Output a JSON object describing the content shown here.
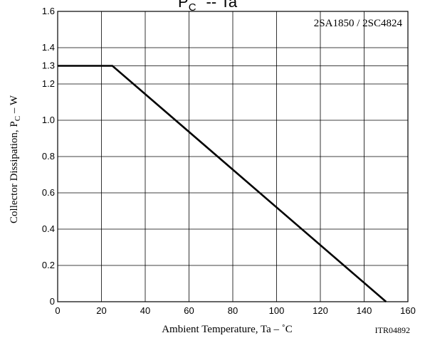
{
  "chart_data": {
    "type": "line",
    "title": "PC  --  Ta",
    "series_label": "2SA1850 / 2SC4824",
    "xlabel": "Ambient Temperature, Ta  –  ˚C",
    "ylabel": "Collector Dissipation, PC  –  W",
    "code": "ITR04892",
    "xlim": [
      0,
      160
    ],
    "ylim": [
      0,
      1.6
    ],
    "x_ticks": [
      "0",
      "20",
      "40",
      "60",
      "80",
      "100",
      "120",
      "140",
      "160"
    ],
    "y_ticks": [
      "0",
      "0.2",
      "0.4",
      "0.6",
      "0.8",
      "1.0",
      "1.2",
      "1.3",
      "1.4",
      "1.6"
    ],
    "grid": true,
    "series": [
      {
        "x": [
          0,
          25,
          150
        ],
        "y": [
          1.3,
          1.3,
          0
        ]
      }
    ]
  }
}
